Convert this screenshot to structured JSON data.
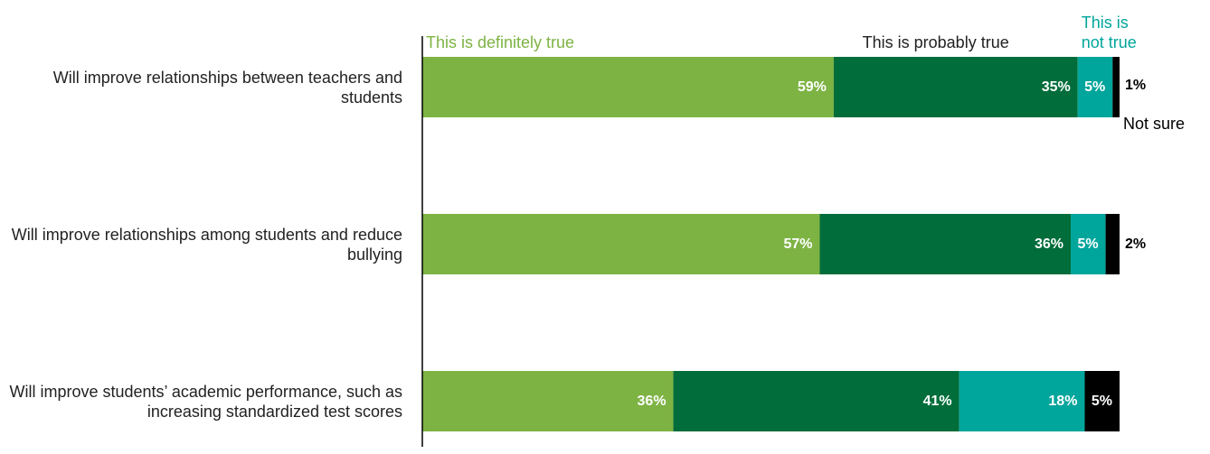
{
  "chart_data": {
    "type": "stacked-bar-horizontal",
    "categories": [
      "Will improve relationships between teachers and students",
      "Will improve relationships among students and reduce bullying",
      "Will improve students’ academic performance, such as increasing standardized test scores"
    ],
    "series": [
      {
        "name": "This is definitely true",
        "color": "#7db343",
        "values": [
          59,
          57,
          36
        ],
        "value_labels": [
          "59%",
          "57%",
          "36%"
        ]
      },
      {
        "name": "This is probably true",
        "color": "#006d3a",
        "values": [
          35,
          36,
          41
        ],
        "value_labels": [
          "35%",
          "36%",
          "41%"
        ]
      },
      {
        "name": "This is not true",
        "color": "#00a59b",
        "values": [
          5,
          5,
          18
        ],
        "value_labels": [
          "5%",
          "5%",
          "18%"
        ]
      },
      {
        "name": "Not sure",
        "color": "#000000",
        "values": [
          1,
          2,
          5
        ],
        "value_labels": [
          "1%",
          "2%",
          "5%"
        ]
      }
    ],
    "xlim": [
      0,
      100
    ]
  }
}
